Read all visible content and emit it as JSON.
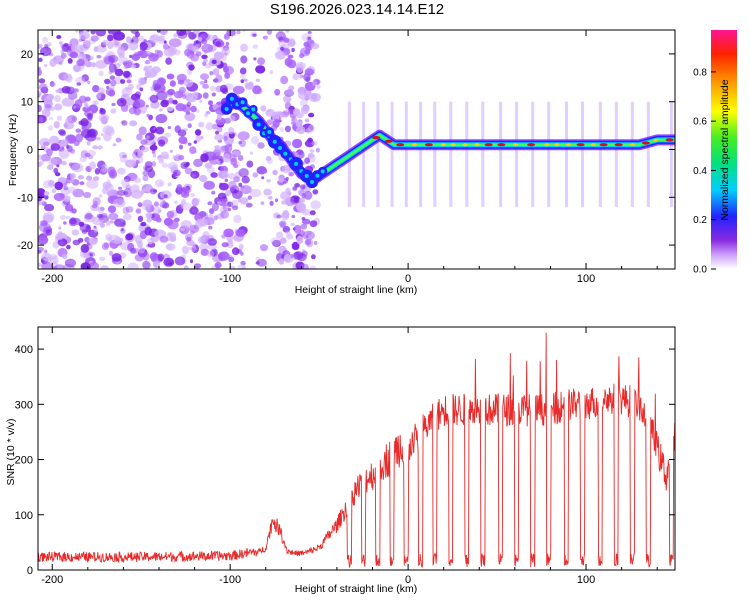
{
  "title": "S196.2026.023.14.14.E12",
  "colors": {
    "snr_line": "#e82a2a",
    "ridge_peak": "#d41020",
    "ridge_high": "#44ff44",
    "ridge_mid": "#00cfff",
    "ridge_low": "#2222ff",
    "ridge_edge": "#7a1aff",
    "noise": "#9a44ff"
  },
  "colorbar": {
    "label": "Normalized spectral amplitude",
    "ticks": [
      "0.0",
      "0.2",
      "0.4",
      "0.6",
      "0.8"
    ],
    "tick_values": [
      0,
      0.2,
      0.4,
      0.6,
      0.8
    ],
    "range": [
      0,
      0.97
    ]
  },
  "chart_data": [
    {
      "type": "heatmap",
      "xlabel": "Height of straight line (km)",
      "ylabel": "Frequency (Hz)",
      "xlim": [
        -208,
        150
      ],
      "ylim": [
        -25,
        25
      ],
      "x_ticks": [
        "-200",
        "-100",
        "0",
        "100"
      ],
      "x_tick_values": [
        -200,
        -100,
        0,
        100
      ],
      "y_ticks": [
        "-20",
        "-10",
        "0",
        "10",
        "20"
      ],
      "y_tick_values": [
        -20,
        -10,
        0,
        10,
        20
      ],
      "ridge": {
        "x": [
          -102,
          -96,
          -90,
          -84,
          -80,
          -76,
          -72,
          -68,
          -64,
          -60,
          -56,
          -52,
          -48,
          -44,
          -40,
          -36,
          -32,
          -28,
          -24,
          -20,
          -16,
          -12,
          -8,
          -4,
          0,
          10,
          20,
          30,
          40,
          50,
          60,
          70,
          80,
          90,
          100,
          110,
          120,
          130,
          140,
          150
        ],
        "y": [
          9,
          10,
          8,
          6,
          4,
          2,
          1,
          -1,
          -3,
          -5,
          -6,
          -6,
          -5,
          -4,
          -3,
          -2,
          -1,
          0,
          1,
          2,
          3,
          2,
          1,
          1,
          1,
          1,
          1,
          1,
          1,
          1,
          1,
          1,
          1,
          1,
          1,
          1,
          1,
          1,
          2,
          2
        ]
      },
      "noise_region": [
        -208,
        -50
      ]
    },
    {
      "type": "line",
      "xlabel": "Height of straight line (km)",
      "ylabel": "SNR (10 * v/v)",
      "xlim": [
        -208,
        150
      ],
      "ylim": [
        0,
        440
      ],
      "x_ticks": [
        "-200",
        "-100",
        "0",
        "100"
      ],
      "x_tick_values": [
        -200,
        -100,
        0,
        100
      ],
      "y_ticks": [
        "0",
        "100",
        "200",
        "300",
        "400"
      ],
      "y_tick_values": [
        0,
        100,
        200,
        300,
        400
      ],
      "trend": {
        "x": [
          -208,
          -150,
          -100,
          -85,
          -80,
          -76,
          -72,
          -68,
          -64,
          -58,
          -50,
          -45,
          -40,
          -35,
          -30,
          -25,
          -20,
          -15,
          -10,
          -5,
          0,
          5,
          10,
          20,
          30,
          40,
          50,
          60,
          70,
          80,
          90,
          100,
          110,
          120,
          130,
          135,
          140,
          145,
          150
        ],
        "y": [
          20,
          20,
          22,
          30,
          40,
          90,
          70,
          35,
          30,
          30,
          40,
          60,
          80,
          110,
          140,
          160,
          170,
          190,
          200,
          220,
          220,
          240,
          260,
          290,
          290,
          290,
          290,
          290,
          290,
          290,
          300,
          300,
          310,
          310,
          300,
          270,
          220,
          170,
          240
        ]
      },
      "dropouts": [
        -33,
        -25,
        -17,
        -9,
        -1,
        7,
        15,
        24,
        33,
        42,
        52,
        61,
        70,
        79,
        89,
        98,
        108,
        117,
        126,
        135,
        148
      ]
    }
  ]
}
